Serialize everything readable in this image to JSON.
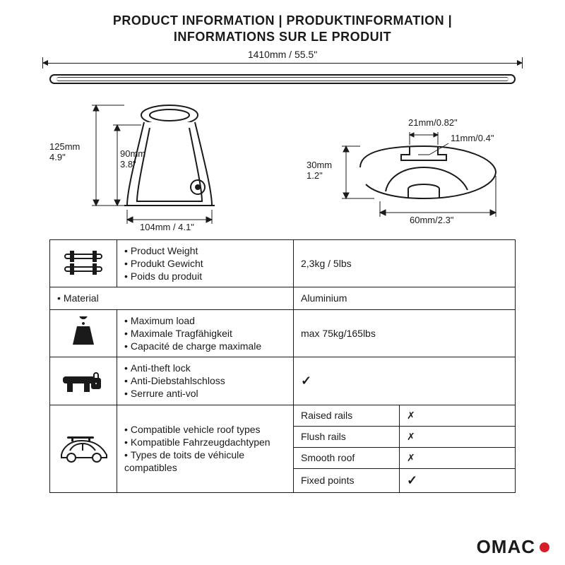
{
  "title_line1": "PRODUCT INFORMATION | PRODUKTINFORMATION |",
  "title_line2": "INFORMATIONS SUR LE PRODUIT",
  "top_dim": "1410mm / 55.5\"",
  "foot": {
    "h_total": "125mm\n4.9\"",
    "h_inner": "90mm\n3.8\"",
    "w": "104mm / 4.1\""
  },
  "profile": {
    "slot_w": "21mm/0.82\"",
    "slot_gap": "11mm/0.4\"",
    "h": "30mm\n1.2\"",
    "w": "60mm/2.3\""
  },
  "rows": {
    "weight": {
      "labels": [
        "Product Weight",
        "Produkt Gewicht",
        "Poids du produit"
      ],
      "value": "2,3kg / 5lbs"
    },
    "material": {
      "labels": [
        "Material"
      ],
      "value": "Aluminium"
    },
    "load": {
      "labels": [
        "Maximum load",
        "Maximale Tragfähigkeit",
        "Capacité de charge maximale"
      ],
      "value": "max 75kg/165lbs"
    },
    "lock": {
      "labels": [
        "Anti-theft lock",
        "Anti-Diebstahlschloss",
        "Serrure anti-vol"
      ],
      "value_check": true
    },
    "compat": {
      "labels": [
        "Compatible vehicle roof types",
        "Kompatible Fahrzeugdachtypen",
        "Types de toits de véhicule compatibles"
      ],
      "sub": [
        {
          "k": "Raised rails",
          "v": false
        },
        {
          "k": "Flush rails",
          "v": false
        },
        {
          "k": "Smooth roof",
          "v": false
        },
        {
          "k": "Fixed points",
          "v": true
        }
      ]
    }
  },
  "brand": "OMAC",
  "colors": {
    "text": "#1a1a1a",
    "accent": "#d81e28",
    "bg": "#ffffff"
  }
}
